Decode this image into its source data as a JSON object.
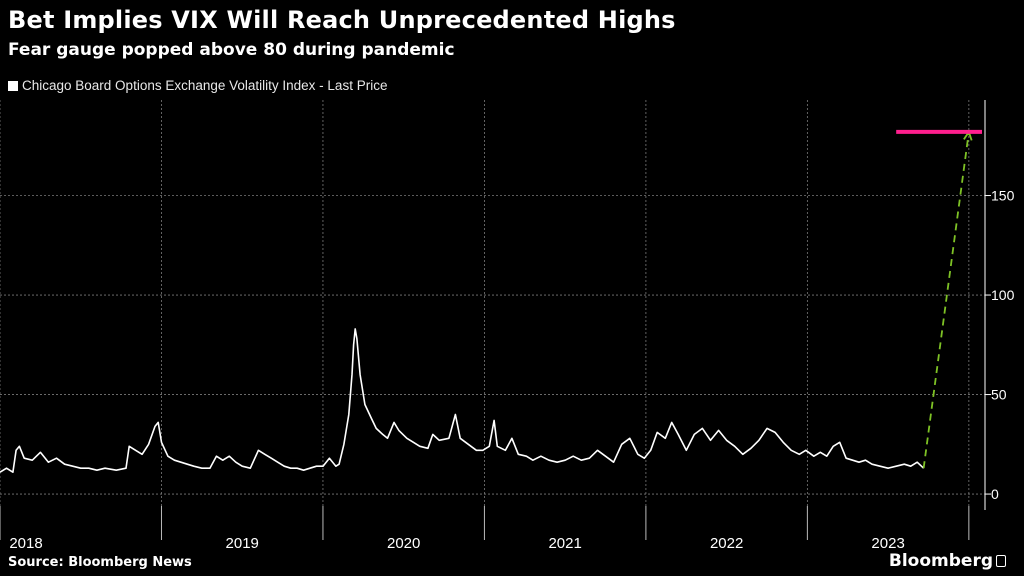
{
  "header": {
    "title": "Bet Implies VIX Will Reach Unprecedented Highs",
    "subtitle": "Fear gauge popped above 80 during pandemic"
  },
  "footer": {
    "source": "Source: Bloomberg News",
    "brand": "Bloomberg"
  },
  "colors": {
    "background": "#000000",
    "series": "#ffffff",
    "target_line": "#ff1f8e",
    "projection": "#7ec225",
    "grid": "#7a7a7a"
  },
  "chart_data": {
    "type": "line",
    "legend": [
      "Chicago Board Options Exchange Volatility Index - Last Price"
    ],
    "legend_position": "top-left",
    "x_ticks": [
      "2018",
      "2019",
      "2020",
      "2021",
      "2022",
      "2023"
    ],
    "x_range": [
      2018.0,
      2024.1
    ],
    "y_ticks": [
      "0",
      "50",
      "100",
      "150"
    ],
    "ylim": [
      -6,
      198
    ],
    "y_axis_side": "right",
    "grid": true,
    "series": [
      {
        "name": "Chicago Board Options Exchange Volatility Index - Last Price",
        "points": [
          [
            2018.0,
            11
          ],
          [
            2018.04,
            13
          ],
          [
            2018.08,
            11
          ],
          [
            2018.1,
            22
          ],
          [
            2018.12,
            24
          ],
          [
            2018.15,
            18
          ],
          [
            2018.2,
            17
          ],
          [
            2018.25,
            21
          ],
          [
            2018.3,
            16
          ],
          [
            2018.35,
            18
          ],
          [
            2018.4,
            15
          ],
          [
            2018.45,
            14
          ],
          [
            2018.5,
            13
          ],
          [
            2018.55,
            13
          ],
          [
            2018.6,
            12
          ],
          [
            2018.65,
            13
          ],
          [
            2018.72,
            12
          ],
          [
            2018.78,
            13
          ],
          [
            2018.8,
            24
          ],
          [
            2018.84,
            22
          ],
          [
            2018.88,
            20
          ],
          [
            2018.92,
            25
          ],
          [
            2018.96,
            34
          ],
          [
            2018.98,
            36
          ],
          [
            2019.0,
            26
          ],
          [
            2019.04,
            19
          ],
          [
            2019.08,
            17
          ],
          [
            2019.12,
            16
          ],
          [
            2019.16,
            15
          ],
          [
            2019.2,
            14
          ],
          [
            2019.25,
            13
          ],
          [
            2019.3,
            13
          ],
          [
            2019.34,
            19
          ],
          [
            2019.38,
            17
          ],
          [
            2019.42,
            19
          ],
          [
            2019.46,
            16
          ],
          [
            2019.5,
            14
          ],
          [
            2019.55,
            13
          ],
          [
            2019.6,
            22
          ],
          [
            2019.64,
            20
          ],
          [
            2019.68,
            18
          ],
          [
            2019.72,
            16
          ],
          [
            2019.76,
            14
          ],
          [
            2019.8,
            13
          ],
          [
            2019.84,
            13
          ],
          [
            2019.88,
            12
          ],
          [
            2019.92,
            13
          ],
          [
            2019.96,
            14
          ],
          [
            2020.0,
            14
          ],
          [
            2020.04,
            18
          ],
          [
            2020.08,
            14
          ],
          [
            2020.1,
            15
          ],
          [
            2020.13,
            25
          ],
          [
            2020.16,
            40
          ],
          [
            2020.18,
            60
          ],
          [
            2020.19,
            75
          ],
          [
            2020.2,
            83
          ],
          [
            2020.21,
            78
          ],
          [
            2020.23,
            60
          ],
          [
            2020.26,
            45
          ],
          [
            2020.3,
            38
          ],
          [
            2020.33,
            33
          ],
          [
            2020.37,
            30
          ],
          [
            2020.4,
            28
          ],
          [
            2020.44,
            36
          ],
          [
            2020.47,
            32
          ],
          [
            2020.52,
            28
          ],
          [
            2020.56,
            26
          ],
          [
            2020.6,
            24
          ],
          [
            2020.65,
            23
          ],
          [
            2020.68,
            30
          ],
          [
            2020.72,
            27
          ],
          [
            2020.78,
            28
          ],
          [
            2020.82,
            40
          ],
          [
            2020.85,
            28
          ],
          [
            2020.9,
            25
          ],
          [
            2020.95,
            22
          ],
          [
            2020.99,
            22
          ],
          [
            2021.03,
            24
          ],
          [
            2021.06,
            37
          ],
          [
            2021.08,
            24
          ],
          [
            2021.13,
            22
          ],
          [
            2021.17,
            28
          ],
          [
            2021.21,
            20
          ],
          [
            2021.26,
            19
          ],
          [
            2021.3,
            17
          ],
          [
            2021.35,
            19
          ],
          [
            2021.4,
            17
          ],
          [
            2021.45,
            16
          ],
          [
            2021.5,
            17
          ],
          [
            2021.55,
            19
          ],
          [
            2021.6,
            17
          ],
          [
            2021.65,
            18
          ],
          [
            2021.7,
            22
          ],
          [
            2021.75,
            19
          ],
          [
            2021.8,
            16
          ],
          [
            2021.85,
            25
          ],
          [
            2021.9,
            28
          ],
          [
            2021.95,
            20
          ],
          [
            2021.99,
            18
          ],
          [
            2022.03,
            22
          ],
          [
            2022.07,
            31
          ],
          [
            2022.12,
            28
          ],
          [
            2022.16,
            36
          ],
          [
            2022.2,
            30
          ],
          [
            2022.25,
            22
          ],
          [
            2022.3,
            30
          ],
          [
            2022.35,
            33
          ],
          [
            2022.4,
            27
          ],
          [
            2022.45,
            32
          ],
          [
            2022.5,
            27
          ],
          [
            2022.55,
            24
          ],
          [
            2022.6,
            20
          ],
          [
            2022.65,
            23
          ],
          [
            2022.7,
            27
          ],
          [
            2022.75,
            33
          ],
          [
            2022.8,
            31
          ],
          [
            2022.85,
            26
          ],
          [
            2022.9,
            22
          ],
          [
            2022.95,
            20
          ],
          [
            2022.99,
            22
          ],
          [
            2023.04,
            19
          ],
          [
            2023.08,
            21
          ],
          [
            2023.12,
            19
          ],
          [
            2023.16,
            24
          ],
          [
            2023.2,
            26
          ],
          [
            2023.24,
            18
          ],
          [
            2023.28,
            17
          ],
          [
            2023.32,
            16
          ],
          [
            2023.36,
            17
          ],
          [
            2023.4,
            15
          ],
          [
            2023.45,
            14
          ],
          [
            2023.5,
            13
          ],
          [
            2023.55,
            14
          ],
          [
            2023.6,
            15
          ],
          [
            2023.64,
            14
          ],
          [
            2023.68,
            16
          ],
          [
            2023.72,
            13
          ]
        ]
      }
    ],
    "projection": {
      "from": [
        2023.72,
        13
      ],
      "to": [
        2024.0,
        182
      ],
      "style": "dashed-arrow"
    },
    "target_level": {
      "value": 182,
      "from_x": 2023.55,
      "to_x": 2024.1
    }
  }
}
